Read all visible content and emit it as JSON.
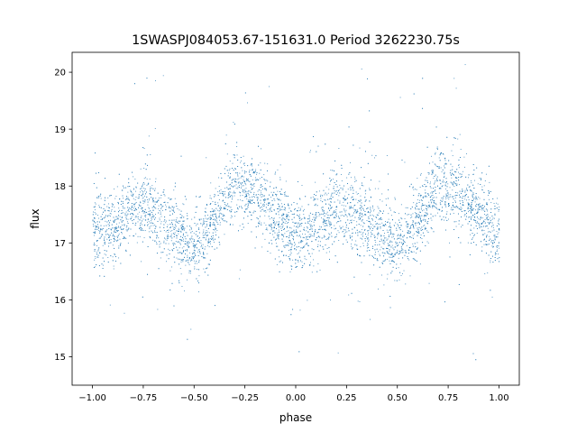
{
  "chart_data": {
    "type": "scatter",
    "title": "1SWASPJ084053.67-151631.0 Period 3262230.75s",
    "xlabel": "phase",
    "ylabel": "flux",
    "xlim": [
      -1.1,
      1.1
    ],
    "ylim": [
      14.5,
      20.35
    ],
    "xticks": [
      -1.0,
      -0.75,
      -0.5,
      -0.25,
      0.0,
      0.25,
      0.5,
      0.75,
      1.0
    ],
    "xtick_labels": [
      "−1.00",
      "−0.75",
      "−0.50",
      "−0.25",
      "0.00",
      "0.25",
      "0.50",
      "0.75",
      "1.00"
    ],
    "yticks": [
      15,
      16,
      17,
      18,
      19,
      20
    ],
    "ytick_labels": [
      "15",
      "16",
      "17",
      "18",
      "19",
      "20"
    ],
    "grid": false,
    "marker_color": "#1f77b4",
    "series": [
      {
        "profile": [
          {
            "x": -1.0,
            "y": 17.15
          },
          {
            "x": -0.9,
            "y": 17.3
          },
          {
            "x": -0.8,
            "y": 17.65
          },
          {
            "x": -0.7,
            "y": 17.55
          },
          {
            "x": -0.6,
            "y": 17.2
          },
          {
            "x": -0.5,
            "y": 16.9
          },
          {
            "x": -0.4,
            "y": 17.4
          },
          {
            "x": -0.3,
            "y": 18.05
          },
          {
            "x": -0.2,
            "y": 17.9
          },
          {
            "x": -0.1,
            "y": 17.45
          },
          {
            "x": 0.0,
            "y": 17.15
          },
          {
            "x": 0.1,
            "y": 17.3
          },
          {
            "x": 0.2,
            "y": 17.65
          },
          {
            "x": 0.3,
            "y": 17.55
          },
          {
            "x": 0.4,
            "y": 17.2
          },
          {
            "x": 0.5,
            "y": 16.9
          },
          {
            "x": 0.6,
            "y": 17.4
          },
          {
            "x": 0.7,
            "y": 18.05
          },
          {
            "x": 0.8,
            "y": 17.9
          },
          {
            "x": 0.9,
            "y": 17.45
          },
          {
            "x": 1.0,
            "y": 17.15
          }
        ]
      }
    ]
  }
}
